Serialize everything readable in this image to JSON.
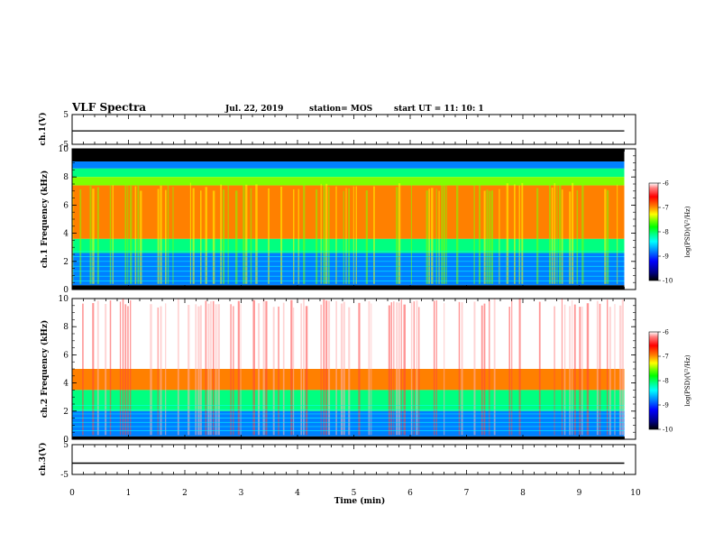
{
  "header": {
    "title": "VLF Spectra",
    "date": "Jul. 22, 2019",
    "station": "station= MOS",
    "start_ut": "start UT =  11: 10: 1"
  },
  "x_axis": {
    "label": "Time (min)",
    "min": 0,
    "max": 10,
    "tick_labels": [
      "0",
      "1",
      "2",
      "3",
      "4",
      "5",
      "6",
      "7",
      "8",
      "9",
      "10"
    ]
  },
  "colors": {
    "spectrogram_scale": [
      "#000000",
      "#000080",
      "#0000ff",
      "#0080ff",
      "#00ffff",
      "#00ff80",
      "#00ff00",
      "#80ff00",
      "#ffff00",
      "#ff8000",
      "#ff0000",
      "#ffffff"
    ]
  },
  "chart_data": [
    {
      "type": "line",
      "panel": "ch1-voltage",
      "ylabel": "ch.1(V)",
      "ylim": [
        -5,
        5
      ],
      "y_tick_labels": [
        "-5",
        "5"
      ],
      "x": [
        0,
        9.8
      ],
      "y": [
        -0.5,
        -0.5
      ]
    },
    {
      "type": "heatmap",
      "panel": "ch1-spectrogram",
      "ylabel": "ch.1 Frequency (kHz)",
      "ylim": [
        0,
        10
      ],
      "xlim": [
        0,
        9.8
      ],
      "y_tick_labels": [
        "0",
        "2",
        "4",
        "6",
        "8",
        "10"
      ],
      "colorbar": {
        "label": "log(PSD)(V²/Hz)",
        "range": [
          -10,
          -6
        ],
        "tick_labels": [
          "-6",
          "-7",
          "-8",
          "-9",
          "-10"
        ]
      },
      "bands_khz": [
        {
          "from": 9.1,
          "to": 10,
          "level": -10.0
        },
        {
          "from": 8.6,
          "to": 9.1,
          "level": -9.0
        },
        {
          "from": 8.0,
          "to": 8.6,
          "level": -8.0
        },
        {
          "from": 7.4,
          "to": 8.0,
          "level": -7.4
        },
        {
          "from": 3.6,
          "to": 7.4,
          "level": -6.6
        },
        {
          "from": 2.6,
          "to": 3.6,
          "level": -8.0
        },
        {
          "from": 0.3,
          "to": 2.6,
          "level": -9.0
        },
        {
          "from": 0.0,
          "to": 0.3,
          "level": -10.0
        }
      ]
    },
    {
      "type": "heatmap",
      "panel": "ch2-spectrogram",
      "ylabel": "ch.2 Frequency (kHz)",
      "ylim": [
        0,
        10
      ],
      "xlim": [
        0,
        9.8
      ],
      "y_tick_labels": [
        "0",
        "2",
        "4",
        "6",
        "8",
        "10"
      ],
      "colorbar": {
        "label": "log(PSD)(V²/Hz)",
        "range": [
          -10,
          -6
        ],
        "tick_labels": [
          "-6",
          "-7",
          "-8",
          "-9",
          "-10"
        ]
      },
      "bands_khz": [
        {
          "from": 5.0,
          "to": 10,
          "level": -5.9
        },
        {
          "from": 3.5,
          "to": 5.0,
          "level": -6.6
        },
        {
          "from": 2.0,
          "to": 3.5,
          "level": -8.0
        },
        {
          "from": 0.2,
          "to": 2.0,
          "level": -9.0
        },
        {
          "from": 0.0,
          "to": 0.2,
          "level": -10.0
        }
      ]
    },
    {
      "type": "line",
      "panel": "ch3-voltage",
      "ylabel": "ch.3(V)",
      "ylim": [
        -5,
        5
      ],
      "y_tick_labels": [
        "-5",
        "5"
      ],
      "x": [
        0,
        9.8
      ],
      "y": [
        -1.2,
        -1.2
      ]
    }
  ]
}
